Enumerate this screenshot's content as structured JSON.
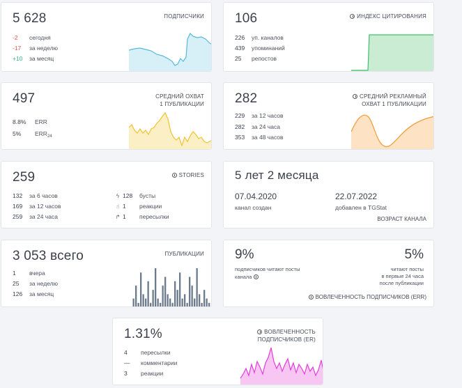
{
  "subscribers": {
    "value": "5 628",
    "title": "ПОДПИСЧИКИ",
    "stats": [
      {
        "v": "-2",
        "l": "сегодня",
        "tone": "red"
      },
      {
        "v": "-17",
        "l": "за неделю",
        "tone": "red"
      },
      {
        "v": "+10",
        "l": "за месяц",
        "tone": "green"
      }
    ],
    "color": "#56b9d9"
  },
  "citation": {
    "value": "106",
    "title": "ИНДЕКС ЦИТИРОВАНИЯ",
    "icon": "info-icon",
    "stats": [
      {
        "v": "226",
        "l": "уп. каналов"
      },
      {
        "v": "439",
        "l": "упоминаний"
      },
      {
        "v": "25",
        "l": "репостов"
      }
    ],
    "color": "#3fbf6a"
  },
  "reach": {
    "value": "497",
    "title1": "СРЕДНИЙ ОХВАТ",
    "title2": "1 ПУБЛИКАЦИИ",
    "err_value": "8.8%",
    "err_label": "ERR",
    "err24_value": "5%",
    "err24_label": "ERR",
    "err24_sub": "24",
    "color": "#f2c230"
  },
  "adreach": {
    "value": "282",
    "title1": "СРЕДНИЙ РЕКЛАМНЫЙ",
    "title2": "ОХВАТ 1 ПУБЛИКАЦИИ",
    "icon": "info-icon",
    "stats": [
      {
        "v": "229",
        "l": "за 12 часов"
      },
      {
        "v": "282",
        "l": "за 24 часа"
      },
      {
        "v": "353",
        "l": "за 48 часов"
      }
    ],
    "color": "#f0a040"
  },
  "stories": {
    "value": "259",
    "title": "STORIES",
    "icon": "info-icon",
    "stats": [
      {
        "v": "132",
        "l": "за 6 часов"
      },
      {
        "v": "169",
        "l": "за 12 часов"
      },
      {
        "v": "259",
        "l": "за 24 часа"
      }
    ],
    "right": [
      {
        "icon": "lightning-icon",
        "glyph": "ϟ",
        "v": "128",
        "l": "бусты"
      },
      {
        "icon": "thumbs-up-icon",
        "glyph": "☝",
        "v": "1",
        "l": "реакции"
      },
      {
        "icon": "share-icon",
        "glyph": "↱",
        "v": "1",
        "l": "пересылки"
      }
    ]
  },
  "age": {
    "value": "5 лет 2 месяца",
    "created_date": "07.04.2020",
    "created_label": "канал создан",
    "added_date": "22.07.2022",
    "added_label": "добавлен в TGStat",
    "title": "ВОЗРАСТ КАНАЛА"
  },
  "publications": {
    "value": "3 053 всего",
    "title": "ПУБЛИКАЦИИ",
    "stats": [
      {
        "v": "1",
        "l": "вчера"
      },
      {
        "v": "25",
        "l": "за неделю"
      },
      {
        "v": "126",
        "l": "за месяц"
      }
    ],
    "color": "#6b7a8c",
    "bars": [
      2,
      5,
      1,
      8,
      3,
      2,
      6,
      1,
      4,
      9,
      2,
      1,
      5,
      7,
      3,
      2,
      1,
      6,
      4,
      8,
      2,
      3,
      1,
      7,
      5,
      2,
      9,
      3,
      1,
      4,
      2,
      1
    ]
  },
  "engagement": {
    "pct1": "9%",
    "text1a": "подписчиков читают посты",
    "text1b": "канала",
    "pct2": "5%",
    "text2a": "читают посты",
    "text2b": "в первые 24 часа",
    "text2c": "после публикации",
    "title": "ВОВЛЕЧЕННОСТЬ ПОДПИСЧИКОВ (ERR)",
    "icon": "info-icon"
  },
  "er": {
    "value": "1.31%",
    "title1": "ВОВЛЕЧЕННОСТЬ",
    "title2": "ПОДПИСЧИКОВ (ER)",
    "icon": "info-icon",
    "stats": [
      {
        "v": "4",
        "l": "пересылки"
      },
      {
        "v": "—",
        "l": "комментарии"
      },
      {
        "v": "3",
        "l": "реакции"
      }
    ],
    "color": "#e040d8"
  }
}
